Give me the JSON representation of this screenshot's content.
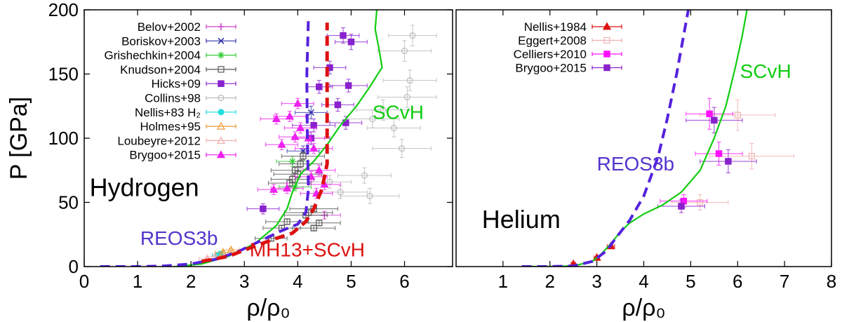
{
  "chart_data": [
    {
      "type": "scatter",
      "panel": "left",
      "title": "",
      "xlabel": "ρ/ρ₀",
      "ylabel": "P [GPa]",
      "xlim": [
        0,
        6.9
      ],
      "ylim": [
        0,
        200
      ],
      "xticks": [
        0,
        1,
        2,
        3,
        4,
        5,
        6
      ],
      "yticks": [
        0,
        50,
        100,
        150,
        200
      ],
      "grid": false,
      "legend_position": "top-left",
      "annotations": [
        {
          "text": "Hydrogen",
          "x": 0.1,
          "y": 55,
          "style": "big",
          "color": "#000000"
        },
        {
          "text": "SCvH",
          "x": 5.4,
          "y": 115,
          "style": "mid",
          "color": "#11cc11"
        },
        {
          "text": "REOS3b",
          "x": 1.05,
          "y": 17,
          "style": "mid",
          "color": "#5533cc"
        },
        {
          "text": "MH13+SCvH",
          "x": 3.1,
          "y": 8,
          "style": "mid",
          "color": "#dd1111"
        }
      ],
      "lines": [
        {
          "name": "SCvH",
          "color": "#11cc11",
          "dash": "solid",
          "width": 2.2,
          "x": [
            1.7,
            2.2,
            2.7,
            3.2,
            3.6,
            3.8,
            3.9,
            4.05,
            4.3,
            4.55,
            4.8,
            5.1,
            5.35,
            5.5,
            5.58,
            5.52,
            5.45,
            5.48
          ],
          "y": [
            0,
            2,
            8,
            18,
            32,
            45,
            58,
            72,
            82,
            95,
            110,
            125,
            140,
            150,
            155,
            170,
            185,
            200
          ]
        },
        {
          "name": "REOS3b",
          "color": "#5522dd",
          "dash": "long",
          "width": 4,
          "x": [
            0.3,
            1.0,
            1.5,
            2.0,
            2.5,
            2.9,
            3.3,
            3.7,
            4.0,
            4.15,
            4.2,
            4.18,
            4.17,
            4.2
          ],
          "y": [
            0,
            0,
            0.5,
            2,
            6,
            12,
            20,
            28,
            33,
            42,
            60,
            100,
            150,
            195
          ]
        },
        {
          "name": "MH13+SCvH",
          "color": "#dd1111",
          "dash": "long",
          "width": 5,
          "x": [
            2.2,
            2.7,
            3.2,
            3.6,
            3.9,
            4.15,
            4.3,
            4.45,
            4.55,
            4.55,
            4.55
          ],
          "y": [
            4,
            8,
            16,
            22,
            26,
            35,
            45,
            60,
            80,
            130,
            190
          ]
        }
      ],
      "series": [
        {
          "name": "Belov+2002",
          "color": "#cc44cc",
          "marker": "plus",
          "points": [
            [
              4.5,
              40,
              0.3,
              3
            ]
          ]
        },
        {
          "name": "Boriskov+2003",
          "color": "#3333aa",
          "marker": "x",
          "points": [
            [
              4.25,
              120,
              0.3,
              5
            ],
            [
              4.1,
              90,
              0.3,
              4
            ]
          ]
        },
        {
          "name": "Grishechkin+2004",
          "color": "#33cc33",
          "marker": "star",
          "points": [
            [
              3.9,
              82,
              0.3,
              4
            ],
            [
              3.95,
              62,
              0.3,
              3
            ]
          ]
        },
        {
          "name": "Knudson+2004",
          "color": "#555555",
          "marker": "open-square",
          "points": [
            [
              3.5,
              22,
              0.3,
              2
            ],
            [
              3.7,
              30,
              0.35,
              2
            ],
            [
              3.8,
              35,
              0.4,
              2
            ],
            [
              4.15,
              40,
              0.4,
              2
            ],
            [
              4.3,
              45,
              0.45,
              2
            ],
            [
              3.9,
              68,
              0.4,
              3
            ],
            [
              3.95,
              75,
              0.45,
              3
            ],
            [
              4.05,
              80,
              0.4,
              3
            ],
            [
              4.1,
              86,
              0.4,
              3
            ],
            [
              4.0,
              72,
              0.45,
              3
            ],
            [
              4.3,
              30,
              0.4,
              2
            ],
            [
              4.4,
              34,
              0.4,
              2
            ],
            [
              3.85,
              65,
              0.4,
              3
            ],
            [
              4.2,
              42,
              0.45,
              2
            ]
          ]
        },
        {
          "name": "Hicks+09",
          "color": "#8822cc",
          "marker": "filled-square",
          "points": [
            [
              3.35,
              45,
              0.3,
              4
            ],
            [
              4.4,
              140,
              0.25,
              5
            ],
            [
              4.6,
              155,
              0.3,
              5
            ],
            [
              4.85,
              180,
              0.3,
              6
            ],
            [
              5.0,
              175,
              0.3,
              6
            ],
            [
              4.95,
              141,
              0.35,
              5
            ],
            [
              4.9,
              112,
              0.3,
              5
            ],
            [
              4.3,
              110,
              0.4,
              5
            ],
            [
              4.25,
              100,
              0.35,
              5
            ],
            [
              4.75,
              126,
              0.3,
              5
            ]
          ]
        },
        {
          "name": "Collins+98",
          "color": "#bbbbbb",
          "marker": "open-circle",
          "points": [
            [
              6.15,
              180,
              0.45,
              8
            ],
            [
              6.0,
              168,
              0.5,
              8
            ],
            [
              6.1,
              145,
              0.5,
              8
            ],
            [
              6.05,
              132,
              0.55,
              8
            ],
            [
              5.6,
              122,
              0.5,
              8
            ],
            [
              5.4,
              115,
              0.5,
              7
            ],
            [
              5.8,
              108,
              0.5,
              7
            ],
            [
              5.95,
              92,
              0.55,
              7
            ],
            [
              5.25,
              71,
              0.5,
              6
            ],
            [
              5.35,
              55,
              0.55,
              6
            ],
            [
              4.8,
              58,
              0.5,
              5
            ],
            [
              4.6,
              66,
              0.4,
              5
            ]
          ]
        },
        {
          "name": "Nellis+83 H₂",
          "color": "#22dddd",
          "marker": "filled-circle",
          "points": [
            [
              2.5,
              9,
              0.1,
              1
            ],
            [
              2.55,
              10,
              0.1,
              1
            ]
          ]
        },
        {
          "name": "Holmes+95",
          "color": "#ee9933",
          "marker": "open-triangle",
          "points": [
            [
              2.6,
              11,
              0.15,
              1
            ],
            [
              2.75,
              13,
              0.15,
              1
            ]
          ]
        },
        {
          "name": "Loubeyre+2012",
          "color": "#f0b0b0",
          "marker": "open-triangle",
          "points": [
            [
              2.3,
              6,
              0.15,
              1
            ],
            [
              2.45,
              8,
              0.15,
              1
            ]
          ]
        },
        {
          "name": "Brygoo+2015",
          "color": "#ee22ee",
          "marker": "filled-triangle",
          "points": [
            [
              3.6,
              115,
              0.3,
              4
            ],
            [
              3.85,
              117,
              0.3,
              4
            ],
            [
              4.0,
              127,
              0.3,
              4
            ],
            [
              3.95,
              101,
              0.3,
              4
            ],
            [
              4.2,
              100,
              0.3,
              4
            ],
            [
              4.3,
              92,
              0.35,
              4
            ],
            [
              4.4,
              75,
              0.3,
              4
            ],
            [
              4.35,
              57,
              0.3,
              4
            ],
            [
              4.5,
              64,
              0.3,
              4
            ],
            [
              4.25,
              70,
              0.3,
              4
            ],
            [
              3.8,
              61,
              0.3,
              4
            ],
            [
              3.55,
              60,
              0.3,
              4
            ],
            [
              3.7,
              95,
              0.3,
              4
            ],
            [
              4.05,
              108,
              0.3,
              4
            ]
          ]
        }
      ]
    },
    {
      "type": "scatter",
      "panel": "right",
      "title": "",
      "xlabel": "ρ/ρ₀",
      "ylabel": "",
      "xlim": [
        0,
        8
      ],
      "ylim": [
        0,
        200
      ],
      "xticks": [
        1,
        2,
        3,
        4,
        5,
        6,
        7,
        8
      ],
      "yticks": [],
      "grid": false,
      "legend_position": "top-left",
      "annotations": [
        {
          "text": "Helium",
          "x": 0.55,
          "y": 30,
          "style": "big",
          "color": "#000000"
        },
        {
          "text": "SCvH",
          "x": 6.05,
          "y": 147,
          "style": "mid",
          "color": "#11cc11"
        },
        {
          "text": "REOS3b",
          "x": 3.0,
          "y": 75,
          "style": "mid",
          "color": "#5533cc"
        }
      ],
      "lines": [
        {
          "name": "SCvH",
          "color": "#11cc11",
          "dash": "solid",
          "width": 2.2,
          "x": [
            1.5,
            2.0,
            2.5,
            2.9,
            3.1,
            3.3,
            3.5,
            3.7,
            4.0,
            4.4,
            4.8,
            5.2,
            5.5,
            5.75,
            5.95,
            6.1,
            6.2
          ],
          "y": [
            0,
            0,
            0.5,
            4,
            10,
            18,
            27,
            34,
            41,
            48,
            58,
            75,
            100,
            125,
            155,
            180,
            200
          ]
        },
        {
          "name": "REOS3b",
          "color": "#5522dd",
          "dash": "long",
          "width": 4,
          "x": [
            1.4,
            2.0,
            2.5,
            2.9,
            3.2,
            3.4,
            3.7,
            4.0,
            4.3,
            4.5,
            4.7,
            4.85,
            4.95
          ],
          "y": [
            0,
            0,
            0.5,
            4,
            12,
            22,
            36,
            55,
            85,
            115,
            150,
            180,
            200
          ]
        }
      ],
      "series": [
        {
          "name": "Nellis+1984",
          "color": "#dd1111",
          "marker": "filled-triangle",
          "points": [
            [
              2.5,
              2,
              0.05,
              1
            ],
            [
              3.0,
              7,
              0.06,
              1
            ],
            [
              3.3,
              16,
              0.08,
              1
            ]
          ]
        },
        {
          "name": "Eggert+2008",
          "color": "#f0b0b0",
          "marker": "open-square",
          "points": [
            [
              5.2,
              50,
              0.6,
              6
            ],
            [
              6.3,
              86,
              0.9,
              10
            ],
            [
              6.0,
              118,
              0.8,
              12
            ]
          ]
        },
        {
          "name": "Celliers+2010",
          "color": "#ff11ff",
          "marker": "filled-square",
          "points": [
            [
              4.85,
              51,
              0.5,
              5
            ],
            [
              5.4,
              119,
              0.5,
              12
            ],
            [
              5.6,
              88,
              0.5,
              9
            ]
          ]
        },
        {
          "name": "Brygoo+2015",
          "color": "#8822cc",
          "marker": "filled-square",
          "points": [
            [
              4.8,
              47,
              0.5,
              5
            ],
            [
              5.5,
              114,
              0.6,
              10
            ],
            [
              5.8,
              82,
              0.6,
              9
            ]
          ]
        }
      ]
    }
  ]
}
